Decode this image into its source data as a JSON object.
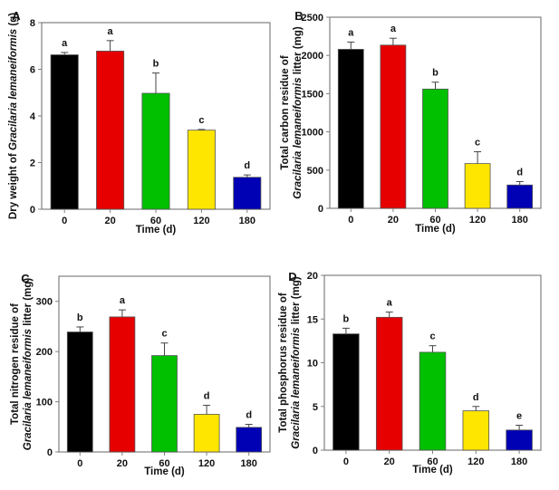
{
  "figure": {
    "panel_count": 4
  },
  "chart_data": [
    {
      "panel": "A",
      "type": "bar",
      "categories": [
        "0",
        "20",
        "60",
        "120",
        "180"
      ],
      "values": [
        6.62,
        6.78,
        4.97,
        3.39,
        1.37
      ],
      "errors": [
        0.1,
        0.45,
        0.87,
        0.03,
        0.1
      ],
      "significance": [
        "a",
        "a",
        "b",
        "c",
        "d"
      ],
      "colors": [
        "#000000",
        "#e60000",
        "#00c000",
        "#ffe600",
        "#0000b4"
      ],
      "xlabel": "Time (d)",
      "ylabel": "Dry weight of Gracilaria lemaneiformis (g)",
      "ylabel_lines": [
        [
          {
            "t": "Dry weight of ",
            "i": false
          },
          {
            "t": "Gracilaria lemaneiformis",
            "i": true
          },
          {
            "t": " (g)",
            "i": false
          }
        ]
      ],
      "ylim": [
        0,
        8
      ],
      "yticks": [
        0,
        2,
        4,
        6,
        8
      ],
      "grid": false
    },
    {
      "panel": "B",
      "type": "bar",
      "categories": [
        "0",
        "20",
        "60",
        "120",
        "180"
      ],
      "values": [
        2080,
        2135,
        1560,
        585,
        305
      ],
      "errors": [
        95,
        90,
        90,
        155,
        45
      ],
      "significance": [
        "a",
        "a",
        "b",
        "c",
        "d"
      ],
      "colors": [
        "#000000",
        "#e60000",
        "#00c000",
        "#ffe600",
        "#0000b4"
      ],
      "xlabel": "Time (d)",
      "ylabel": "Total carbon residue of Gracilaria lemaneiformis litter (mg)",
      "ylabel_lines": [
        [
          {
            "t": "Total carbon residue of",
            "i": false
          }
        ],
        [
          {
            "t": "Gracilaria lemaneiformis",
            "i": true
          },
          {
            "t": " litter (mg)",
            "i": false
          }
        ]
      ],
      "ylim": [
        0,
        2500
      ],
      "yticks": [
        0,
        500,
        1000,
        1500,
        2000,
        2500
      ],
      "grid": false
    },
    {
      "panel": "C",
      "type": "bar",
      "categories": [
        "0",
        "20",
        "60",
        "120",
        "180"
      ],
      "values": [
        239,
        269,
        192,
        75,
        49
      ],
      "errors": [
        10,
        14,
        25,
        18,
        6
      ],
      "significance": [
        "b",
        "a",
        "c",
        "d",
        "d"
      ],
      "colors": [
        "#000000",
        "#e60000",
        "#00c000",
        "#ffe600",
        "#0000b4"
      ],
      "xlabel": "Time (d)",
      "ylabel": "Total nitrogen residue of Gracilaria lemaneiformis litter (mg)",
      "ylabel_lines": [
        [
          {
            "t": "Total nitrogen residue of",
            "i": false
          }
        ],
        [
          {
            "t": "Gracilaria lemaneiformis",
            "i": true
          },
          {
            "t": " litter (mg)",
            "i": false
          }
        ]
      ],
      "ylim": [
        0,
        350
      ],
      "yticks": [
        0,
        100,
        200,
        300
      ],
      "grid": false
    },
    {
      "panel": "D",
      "type": "bar",
      "categories": [
        "0",
        "20",
        "60",
        "120",
        "180"
      ],
      "values": [
        13.3,
        15.2,
        11.2,
        4.5,
        2.3
      ],
      "errors": [
        0.65,
        0.6,
        0.75,
        0.5,
        0.55
      ],
      "significance": [
        "b",
        "a",
        "c",
        "d",
        "e"
      ],
      "colors": [
        "#000000",
        "#e60000",
        "#00c000",
        "#ffe600",
        "#0000b4"
      ],
      "xlabel": "Time (d)",
      "ylabel": "Total phosphorus residue of Gracilaria lemaneiformis litter (mg)",
      "ylabel_lines": [
        [
          {
            "t": "Total phosphorus residue of",
            "i": false
          }
        ],
        [
          {
            "t": "Gracilaria lemaneiformis",
            "i": true
          },
          {
            "t": " litter (mg)",
            "i": false
          }
        ]
      ],
      "ylim": [
        0,
        20
      ],
      "yticks": [
        0,
        5,
        10,
        15,
        20
      ],
      "grid": false
    }
  ]
}
